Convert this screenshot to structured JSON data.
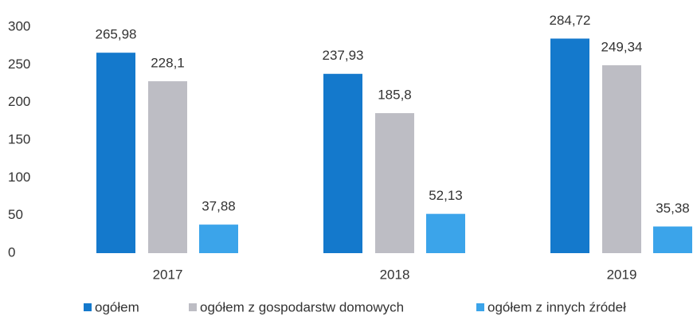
{
  "chart_data": {
    "type": "bar",
    "categories": [
      "2017",
      "2018",
      "2019"
    ],
    "series": [
      {
        "name": "ogółem",
        "color": "#1479cc",
        "values": [
          265.98,
          237.93,
          284.72
        ],
        "value_labels": [
          "265,98",
          "237,93",
          "284,72"
        ]
      },
      {
        "name": "ogółem z gospodarstw domowych",
        "color": "#bdbdc4",
        "values": [
          228.1,
          185.8,
          249.34
        ],
        "value_labels": [
          "228,1",
          "185,8",
          "249,34"
        ]
      },
      {
        "name": "ogółem z innych źródeł",
        "color": "#3ba4ea",
        "values": [
          37.88,
          52.13,
          35.38
        ],
        "value_labels": [
          "37,88",
          "52,13",
          "35,38"
        ]
      }
    ],
    "ylim": [
      0,
      300
    ],
    "yticks": [
      0,
      50,
      100,
      150,
      200,
      250,
      300
    ],
    "grid": false,
    "legend": "bottom"
  }
}
